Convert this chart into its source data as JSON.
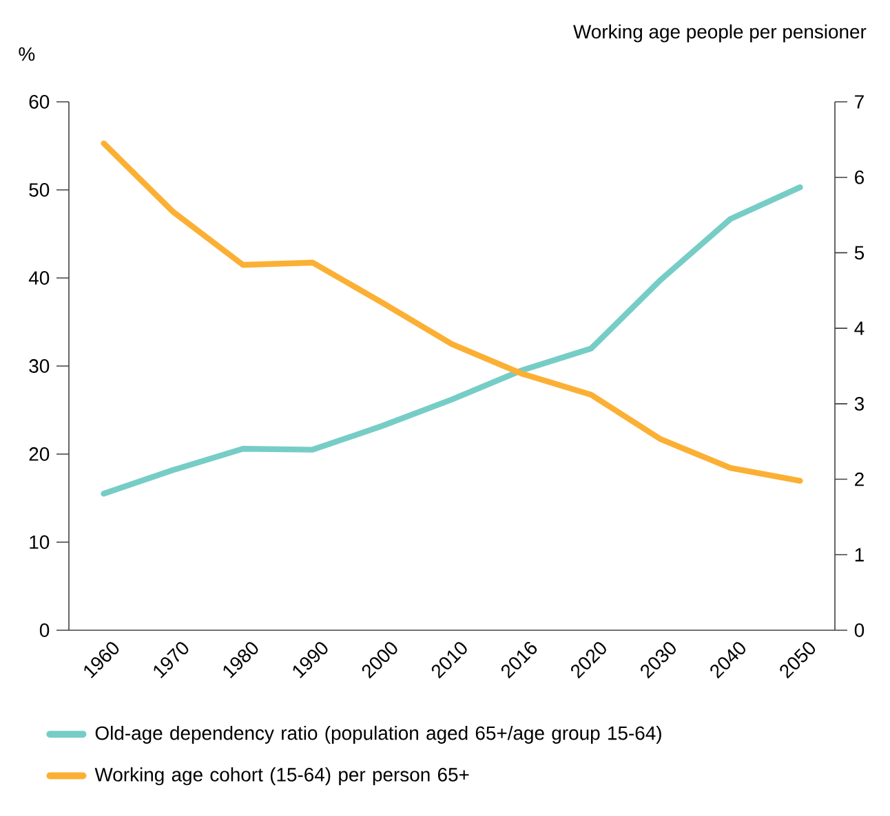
{
  "chart_data": {
    "type": "line",
    "ylabel": "%",
    "y2label": "Working age people per pensioner",
    "categories": [
      "1960",
      "1970",
      "1980",
      "1990",
      "2000",
      "2010",
      "2016",
      "2020",
      "2030",
      "2040",
      "2050"
    ],
    "series": [
      {
        "name": "Old-age dependency ratio (population aged 65+/age group 15-64)",
        "color": "#76cdc6",
        "values": [
          15.5,
          18.2,
          20.6,
          20.5,
          23.2,
          26.2,
          29.5,
          32.0,
          39.8,
          46.7,
          50.3
        ]
      },
      {
        "name": "Working age cohort (15-64) per person 65+",
        "color": "#fbb034",
        "axis": "y2",
        "values": [
          6.45,
          5.54,
          4.84,
          4.87,
          4.34,
          3.79,
          3.4,
          3.12,
          2.53,
          2.15,
          1.98
        ]
      }
    ],
    "ylim": [
      0,
      60
    ],
    "yticks": [
      0,
      10,
      20,
      30,
      40,
      50,
      60
    ],
    "y2lim": [
      0,
      7
    ],
    "y2ticks": [
      0,
      1,
      2,
      3,
      4,
      5,
      6,
      7
    ],
    "grid": false,
    "legend": "bottom"
  }
}
